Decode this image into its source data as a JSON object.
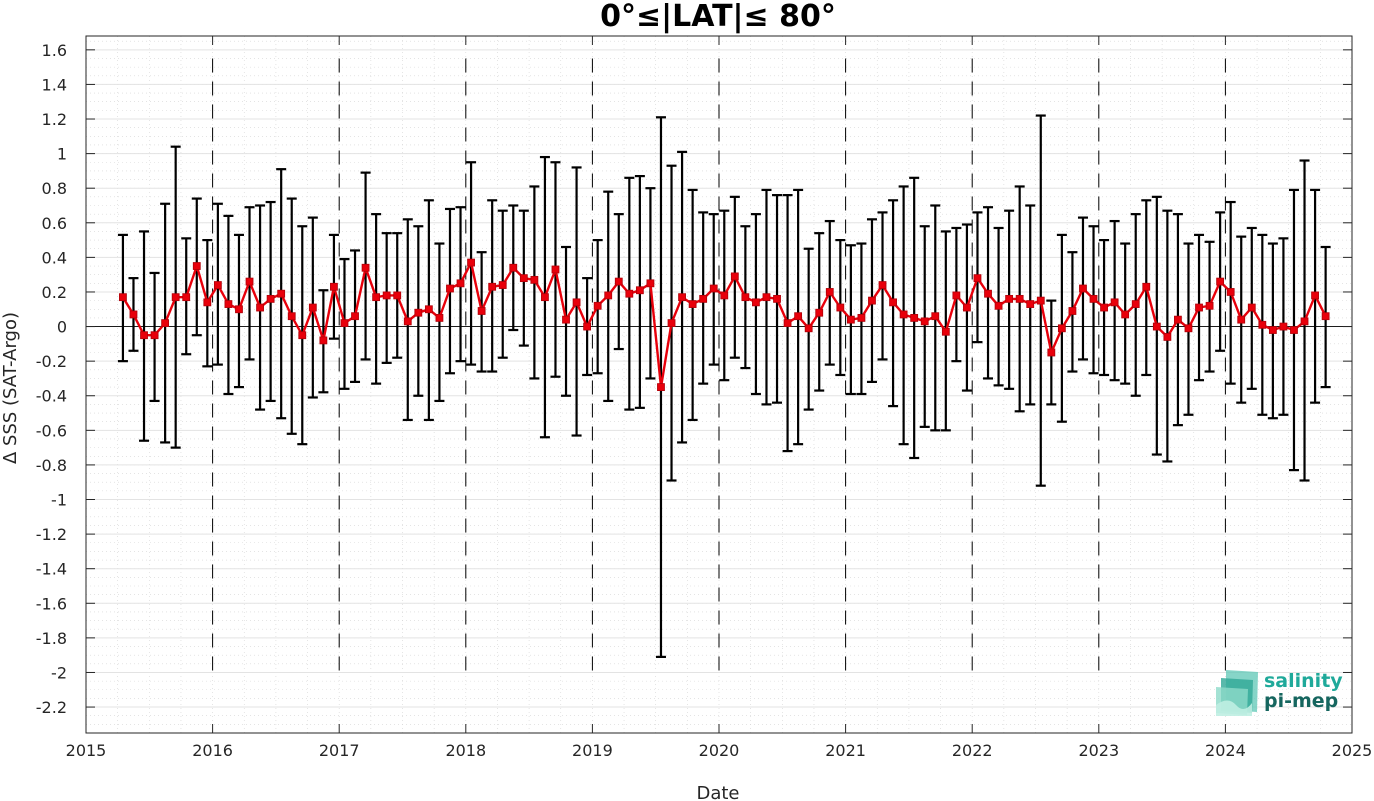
{
  "chart_data": {
    "type": "line",
    "title": "0°≤|LAT|≤ 80°",
    "xlabel": "Date",
    "ylabel": "Δ SSS (SAT-Argo)",
    "xlim": [
      2015,
      2025
    ],
    "ylim": [
      -2.35,
      1.68
    ],
    "x_ticks": [
      "2015",
      "2016",
      "2017",
      "2018",
      "2019",
      "2020",
      "2021",
      "2022",
      "2023",
      "2024",
      "2025"
    ],
    "y_ticks": [
      "1.6",
      "1.4",
      "1.2",
      "1",
      "0.8",
      "0.6",
      "0.4",
      "0.2",
      "0",
      "-0.2",
      "-0.4",
      "-0.6",
      "-0.8",
      "-1",
      "-1.2",
      "-1.4",
      "-1.6",
      "-1.8",
      "-2",
      "-2.2"
    ],
    "year_lines": [
      2016,
      2017,
      2018,
      2019,
      2020,
      2021,
      2022,
      2023,
      2024
    ],
    "grid": true,
    "minor_grid": true,
    "series": [
      {
        "color": "#e8000b",
        "marker": "square",
        "errorbar_color": "#000000",
        "x": [
          "2015-04",
          "2015-05",
          "2015-06",
          "2015-07",
          "2015-08",
          "2015-09",
          "2015-10",
          "2015-11",
          "2015-12",
          "2016-01",
          "2016-02",
          "2016-03",
          "2016-04",
          "2016-05",
          "2016-06",
          "2016-07",
          "2016-08",
          "2016-09",
          "2016-10",
          "2016-11",
          "2016-12",
          "2017-01",
          "2017-02",
          "2017-03",
          "2017-04",
          "2017-05",
          "2017-06",
          "2017-07",
          "2017-08",
          "2017-09",
          "2017-10",
          "2017-11",
          "2017-12",
          "2018-01",
          "2018-02",
          "2018-03",
          "2018-04",
          "2018-05",
          "2018-06",
          "2018-07",
          "2018-08",
          "2018-09",
          "2018-10",
          "2018-11",
          "2018-12",
          "2019-01",
          "2019-02",
          "2019-03",
          "2019-04",
          "2019-05",
          "2019-06",
          "2019-07",
          "2019-08",
          "2019-09",
          "2019-10",
          "2019-11",
          "2019-12",
          "2020-01",
          "2020-02",
          "2020-03",
          "2020-04",
          "2020-05",
          "2020-06",
          "2020-07",
          "2020-08",
          "2020-09",
          "2020-10",
          "2020-11",
          "2020-12",
          "2021-01",
          "2021-02",
          "2021-03",
          "2021-04",
          "2021-05",
          "2021-06",
          "2021-07",
          "2021-08",
          "2021-09",
          "2021-10",
          "2021-11",
          "2021-12",
          "2022-01",
          "2022-02",
          "2022-03",
          "2022-04",
          "2022-05",
          "2022-06",
          "2022-07",
          "2022-08",
          "2022-09",
          "2022-10",
          "2022-11",
          "2022-12",
          "2023-01",
          "2023-02",
          "2023-03",
          "2023-04",
          "2023-05",
          "2023-06",
          "2023-07",
          "2023-08",
          "2023-09",
          "2023-10",
          "2023-11",
          "2023-12",
          "2024-01",
          "2024-02",
          "2024-03",
          "2024-04",
          "2024-05",
          "2024-06",
          "2024-07",
          "2024-08",
          "2024-09",
          "2024-10"
        ],
        "y": [
          0.17,
          0.07,
          -0.05,
          -0.05,
          0.02,
          0.17,
          0.17,
          0.35,
          0.14,
          0.24,
          0.13,
          0.1,
          0.26,
          0.11,
          0.16,
          0.19,
          0.06,
          -0.05,
          0.11,
          -0.08,
          0.23,
          0.02,
          0.06,
          0.34,
          0.17,
          0.18,
          0.18,
          0.03,
          0.08,
          0.1,
          0.05,
          0.22,
          0.25,
          0.37,
          0.09,
          0.23,
          0.24,
          0.34,
          0.28,
          0.27,
          0.17,
          0.33,
          0.04,
          0.14,
          0.0,
          0.12,
          0.18,
          0.26,
          0.19,
          0.21,
          0.25,
          -0.35,
          0.02,
          0.17,
          0.13,
          0.16,
          0.22,
          0.18,
          0.29,
          0.17,
          0.14,
          0.17,
          0.16,
          0.02,
          0.06,
          -0.01,
          0.08,
          0.2,
          0.11,
          0.04,
          0.05,
          0.15,
          0.24,
          0.14,
          0.07,
          0.05,
          0.03,
          0.06,
          -0.03,
          0.18,
          0.11,
          0.28,
          0.19,
          0.12,
          0.16,
          0.16,
          0.13,
          0.15,
          -0.15,
          -0.01,
          0.09,
          0.22,
          0.16,
          0.11,
          0.14,
          0.07,
          0.13,
          0.23,
          0.0,
          -0.06,
          0.04,
          -0.01,
          0.11,
          0.12,
          0.26,
          0.2,
          0.04,
          0.11,
          0.01,
          -0.02,
          0.0,
          -0.02,
          0.03,
          0.18,
          0.06
        ],
        "err_high": [
          0.53,
          0.28,
          0.55,
          0.31,
          0.71,
          1.04,
          0.51,
          0.74,
          0.5,
          0.71,
          0.64,
          0.53,
          0.69,
          0.7,
          0.72,
          0.91,
          0.74,
          0.58,
          0.63,
          0.21,
          0.53,
          0.39,
          0.44,
          0.89,
          0.65,
          0.54,
          0.54,
          0.62,
          0.58,
          0.73,
          0.48,
          0.68,
          0.69,
          0.95,
          0.43,
          0.73,
          0.67,
          0.7,
          0.67,
          0.81,
          0.98,
          0.95,
          0.46,
          0.92,
          0.28,
          0.5,
          0.78,
          0.65,
          0.86,
          0.87,
          0.8,
          1.21,
          0.93,
          1.01,
          0.79,
          0.66,
          0.65,
          0.67,
          0.75,
          0.58,
          0.65,
          0.79,
          0.76,
          0.76,
          0.79,
          0.45,
          0.54,
          0.61,
          0.5,
          0.47,
          0.48,
          0.62,
          0.66,
          0.73,
          0.81,
          0.86,
          0.58,
          0.7,
          0.55,
          0.57,
          0.59,
          0.66,
          0.69,
          0.57,
          0.67,
          0.81,
          0.7,
          1.22,
          0.15,
          0.53,
          0.43,
          0.63,
          0.58,
          0.5,
          0.61,
          0.48,
          0.65,
          0.73,
          0.75,
          0.67,
          0.65,
          0.48,
          0.53,
          0.49,
          0.66,
          0.72,
          0.52,
          0.57,
          0.53,
          0.48,
          0.51,
          0.79,
          0.96,
          0.79,
          0.46
        ],
        "err_low": [
          -0.2,
          -0.14,
          -0.66,
          -0.43,
          -0.67,
          -0.7,
          -0.16,
          -0.05,
          -0.23,
          -0.22,
          -0.39,
          -0.35,
          -0.19,
          -0.48,
          -0.43,
          -0.53,
          -0.62,
          -0.68,
          -0.41,
          -0.38,
          -0.07,
          -0.36,
          -0.32,
          -0.19,
          -0.33,
          -0.21,
          -0.18,
          -0.54,
          -0.4,
          -0.54,
          -0.43,
          -0.27,
          -0.2,
          -0.22,
          -0.26,
          -0.26,
          -0.18,
          -0.02,
          -0.11,
          -0.3,
          -0.64,
          -0.29,
          -0.4,
          -0.63,
          -0.28,
          -0.27,
          -0.43,
          -0.13,
          -0.48,
          -0.47,
          -0.3,
          -1.91,
          -0.89,
          -0.67,
          -0.54,
          -0.33,
          -0.22,
          -0.31,
          -0.18,
          -0.24,
          -0.39,
          -0.45,
          -0.44,
          -0.72,
          -0.68,
          -0.48,
          -0.37,
          -0.22,
          -0.28,
          -0.39,
          -0.39,
          -0.32,
          -0.19,
          -0.46,
          -0.68,
          -0.76,
          -0.58,
          -0.6,
          -0.6,
          -0.2,
          -0.37,
          -0.09,
          -0.3,
          -0.34,
          -0.36,
          -0.49,
          -0.45,
          -0.92,
          -0.45,
          -0.55,
          -0.26,
          -0.19,
          -0.27,
          -0.28,
          -0.31,
          -0.33,
          -0.4,
          -0.28,
          -0.74,
          -0.78,
          -0.57,
          -0.51,
          -0.31,
          -0.26,
          -0.14,
          -0.33,
          -0.44,
          -0.36,
          -0.51,
          -0.53,
          -0.51,
          -0.83,
          -0.89,
          -0.44,
          -0.35
        ]
      }
    ]
  },
  "logo": {
    "line1": "salinity",
    "line2": "pi-mep",
    "color1": "#1fa99a",
    "color2": "#16665f"
  }
}
